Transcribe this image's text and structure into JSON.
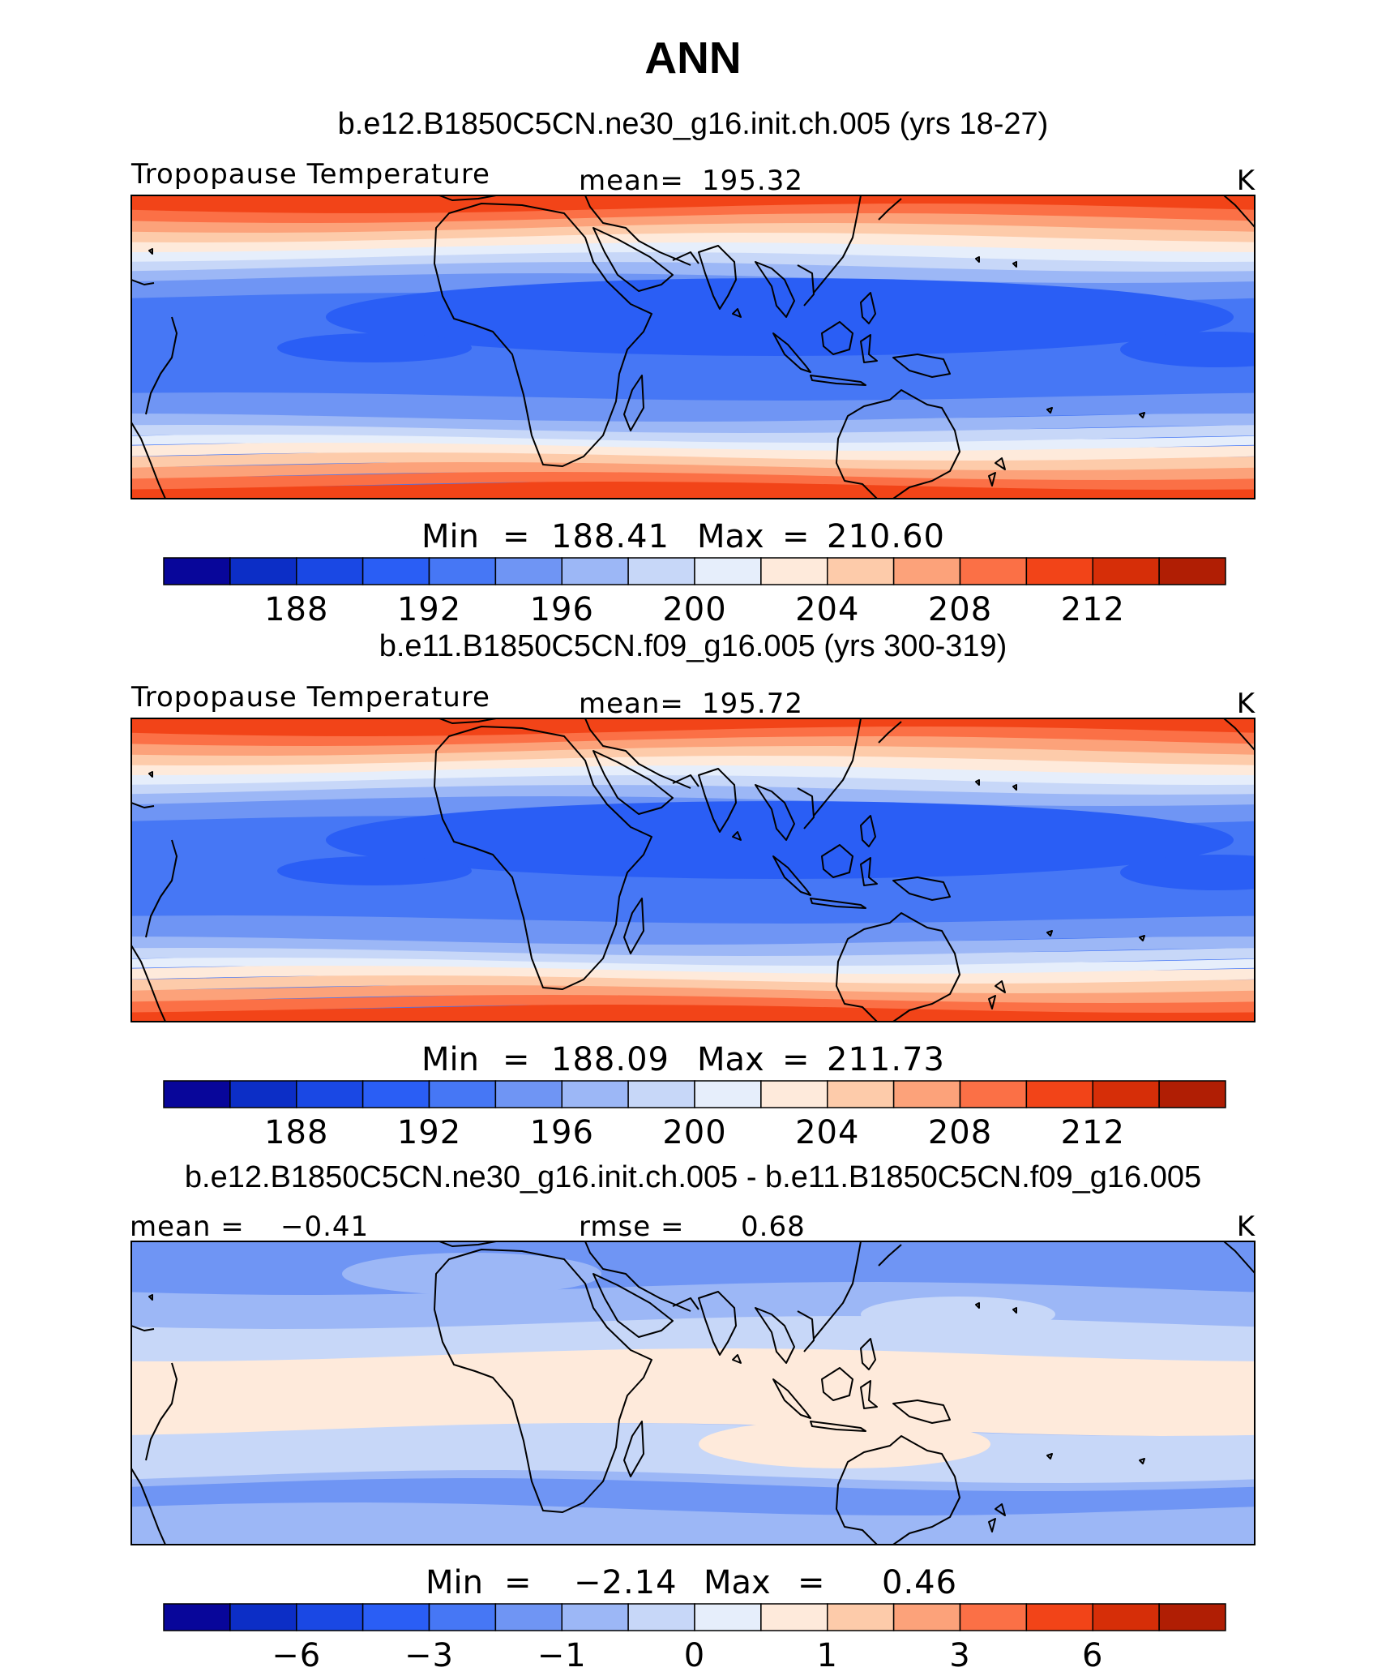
{
  "figure": {
    "title": "ANN"
  },
  "colormap": [
    "#08069a",
    "#0c2ec6",
    "#1a48e4",
    "#2a5ef5",
    "#4677f5",
    "#6f95f4",
    "#9cb7f6",
    "#c7d7f8",
    "#e6eefb",
    "#feeadb",
    "#fdcbaa",
    "#fca27a",
    "#fb7046",
    "#f24418",
    "#d62e08",
    "#b01e04",
    "#860902"
  ],
  "contour_levels": {
    "temperature": [
      186,
      188,
      190,
      192,
      194,
      196,
      198,
      200,
      202,
      204,
      206,
      208,
      210,
      212,
      214
    ],
    "difference": [
      -9,
      -6,
      -4,
      -3,
      -2,
      -1,
      -0.5,
      0,
      0.5,
      1,
      2,
      3,
      4,
      6,
      9
    ]
  },
  "chart_data": [
    {
      "type": "heatmap",
      "title": "b.e12.B1850C5CN.ne30_g16.init.ch.005 (yrs 18-27)",
      "variable": "Tropopause Temperature",
      "units": "K",
      "mean": "195.32",
      "min": "188.41",
      "max": "210.60",
      "colorbar_ticks": [
        "188",
        "192",
        "196",
        "200",
        "204",
        "208",
        "212"
      ]
    },
    {
      "type": "heatmap",
      "title": "b.e11.B1850C5CN.f09_g16.005 (yrs 300-319)",
      "variable": "Tropopause Temperature",
      "units": "K",
      "mean": "195.72",
      "min": "188.09",
      "max": "211.73",
      "colorbar_ticks": [
        "188",
        "192",
        "196",
        "200",
        "204",
        "208",
        "212"
      ]
    },
    {
      "type": "heatmap",
      "title": "b.e12.B1850C5CN.ne30_g16.init.ch.005 - b.e11.B1850C5CN.f09_g16.005",
      "variable": "",
      "units": "K",
      "mean_label": "mean =",
      "mean": "−0.41",
      "rmse_label": "rmse =",
      "rmse": "0.68",
      "min": "−2.14",
      "max": "0.46",
      "colorbar_ticks": [
        "−6",
        "−3",
        "−1",
        "0",
        "1",
        "3",
        "6"
      ]
    }
  ]
}
